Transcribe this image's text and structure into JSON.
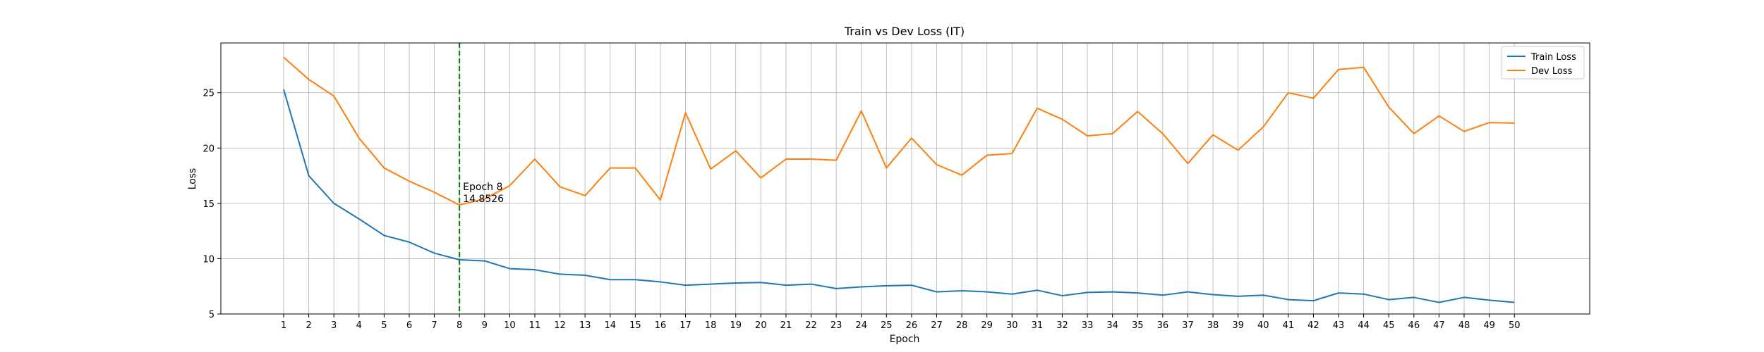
{
  "chart_data": {
    "type": "line",
    "title": "Train vs Dev Loss (IT)",
    "xlabel": "Epoch",
    "ylabel": "Loss",
    "x": [
      1,
      2,
      3,
      4,
      5,
      6,
      7,
      8,
      9,
      10,
      11,
      12,
      13,
      14,
      15,
      16,
      17,
      18,
      19,
      20,
      21,
      22,
      23,
      24,
      25,
      26,
      27,
      28,
      29,
      30,
      31,
      32,
      33,
      34,
      35,
      36,
      37,
      38,
      39,
      40,
      41,
      42,
      43,
      44,
      45,
      46,
      47,
      48,
      49,
      50
    ],
    "xlim": [
      -1.5,
      53.0
    ],
    "ylim": [
      5,
      29.5
    ],
    "yticks": [
      5,
      10,
      15,
      20,
      25
    ],
    "grid": true,
    "legend_position": "top-right",
    "series": [
      {
        "name": "Train Loss",
        "color": "#1f77b4",
        "values": [
          25.3,
          17.5,
          15.0,
          13.6,
          12.1,
          11.5,
          10.5,
          9.9,
          9.8,
          9.1,
          9.0,
          8.6,
          8.5,
          8.1,
          8.1,
          7.9,
          7.6,
          7.7,
          7.8,
          7.85,
          7.6,
          7.7,
          7.3,
          7.45,
          7.55,
          7.6,
          7.0,
          7.1,
          7.0,
          6.8,
          7.15,
          6.65,
          6.95,
          7.0,
          6.9,
          6.7,
          7.0,
          6.75,
          6.6,
          6.7,
          6.3,
          6.2,
          6.9,
          6.8,
          6.3,
          6.5,
          6.05,
          6.5,
          6.25,
          6.05
        ]
      },
      {
        "name": "Dev Loss",
        "color": "#ff7f0e",
        "values": [
          28.2,
          26.2,
          24.7,
          20.9,
          18.2,
          17.0,
          16.0,
          14.85,
          15.4,
          16.6,
          19.0,
          16.5,
          15.7,
          18.2,
          18.2,
          15.3,
          23.2,
          18.1,
          19.75,
          17.3,
          19.0,
          19.0,
          18.9,
          23.35,
          18.2,
          20.9,
          18.5,
          17.55,
          19.35,
          19.5,
          23.6,
          22.6,
          21.1,
          21.3,
          23.3,
          21.3,
          18.6,
          21.2,
          19.8,
          21.9,
          25.0,
          24.5,
          27.1,
          27.3,
          23.7,
          21.3,
          22.9,
          21.5,
          22.3,
          22.25
        ]
      }
    ],
    "annotation": {
      "epoch": 8,
      "line1": "Epoch 8",
      "line2": "14.8526",
      "line_color": "#008000"
    }
  }
}
